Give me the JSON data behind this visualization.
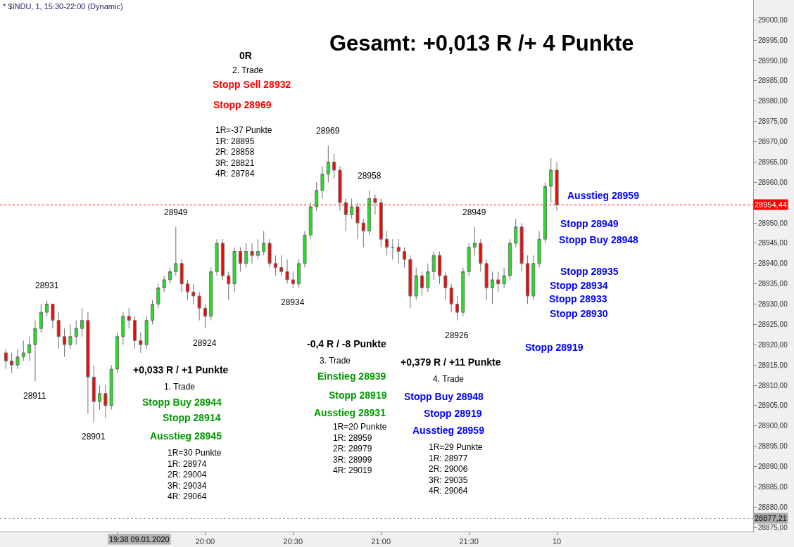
{
  "chart_data": {
    "type": "candlestick",
    "title": "Gesamt: +0,013 R /+ 4 Punkte",
    "subtitle": "* $INDU, 1, 15:30-22:00 (Dynamic)",
    "x": [
      "2020-01-09T18:52",
      "2020-01-09T18:54",
      "2020-01-09T18:56",
      "2020-01-09T18:58",
      "2020-01-09T19:00",
      "2020-01-09T19:02",
      "2020-01-09T19:04",
      "2020-01-09T19:06",
      "2020-01-09T19:08",
      "2020-01-09T19:10",
      "2020-01-09T19:12",
      "2020-01-09T19:14",
      "2020-01-09T19:16",
      "2020-01-09T19:18",
      "2020-01-09T19:20",
      "2020-01-09T19:22",
      "2020-01-09T19:24",
      "2020-01-09T19:26",
      "2020-01-09T19:28",
      "2020-01-09T19:30",
      "2020-01-09T19:32",
      "2020-01-09T19:34",
      "2020-01-09T19:36",
      "2020-01-09T19:38",
      "2020-01-09T19:40",
      "2020-01-09T19:42",
      "2020-01-09T19:44",
      "2020-01-09T19:46",
      "2020-01-09T19:48",
      "2020-01-09T19:50",
      "2020-01-09T19:52",
      "2020-01-09T19:54",
      "2020-01-09T19:56",
      "2020-01-09T19:58",
      "2020-01-09T20:00",
      "2020-01-09T20:02",
      "2020-01-09T20:04",
      "2020-01-09T20:06",
      "2020-01-09T20:08",
      "2020-01-09T20:10",
      "2020-01-09T20:12",
      "2020-01-09T20:14",
      "2020-01-09T20:16",
      "2020-01-09T20:18",
      "2020-01-09T20:20",
      "2020-01-09T20:22",
      "2020-01-09T20:24",
      "2020-01-09T20:26",
      "2020-01-09T20:28",
      "2020-01-09T20:30",
      "2020-01-09T20:32",
      "2020-01-09T20:34",
      "2020-01-09T20:36",
      "2020-01-09T20:38",
      "2020-01-09T20:40",
      "2020-01-09T20:42",
      "2020-01-09T20:44",
      "2020-01-09T20:46",
      "2020-01-09T20:48",
      "2020-01-09T20:50",
      "2020-01-09T20:52",
      "2020-01-09T20:54",
      "2020-01-09T20:56",
      "2020-01-09T20:58",
      "2020-01-09T21:00",
      "2020-01-09T21:02",
      "2020-01-09T21:04",
      "2020-01-09T21:06",
      "2020-01-09T21:08",
      "2020-01-09T21:10",
      "2020-01-09T21:12",
      "2020-01-09T21:14",
      "2020-01-09T21:16",
      "2020-01-09T21:18",
      "2020-01-09T21:20",
      "2020-01-09T21:22",
      "2020-01-09T21:24",
      "2020-01-09T21:26",
      "2020-01-09T21:28",
      "2020-01-09T21:30",
      "2020-01-09T21:32",
      "2020-01-09T21:34",
      "2020-01-09T21:36",
      "2020-01-09T21:38",
      "2020-01-09T21:40",
      "2020-01-09T21:42",
      "2020-01-09T21:44",
      "2020-01-09T21:46",
      "2020-01-09T21:48",
      "2020-01-09T21:50",
      "2020-01-09T21:52",
      "2020-01-09T21:54",
      "2020-01-09T21:56",
      "2020-01-09T21:58",
      "2020-01-09T22:00"
    ],
    "ohlc": [
      [
        28918,
        28919,
        28914,
        28916
      ],
      [
        28916,
        28918,
        28913,
        28915
      ],
      [
        28915,
        28919,
        28914,
        28917
      ],
      [
        28917,
        28921,
        28916,
        28918
      ],
      [
        28918,
        28922,
        28916,
        28920
      ],
      [
        28920,
        28926,
        28911,
        28924
      ],
      [
        28924,
        28930,
        28923,
        28928
      ],
      [
        28928,
        28931,
        28927,
        28930
      ],
      [
        28930,
        28930,
        28924,
        28926
      ],
      [
        28926,
        28928,
        28919,
        28922
      ],
      [
        28922,
        28924,
        28917,
        28920
      ],
      [
        28920,
        28925,
        28919,
        28922
      ],
      [
        28922,
        28926,
        28920,
        28924
      ],
      [
        28924,
        28929,
        28922,
        28926
      ],
      [
        28926,
        28928,
        28903,
        28912
      ],
      [
        28912,
        28915,
        28901,
        28906
      ],
      [
        28906,
        28910,
        28904,
        28908
      ],
      [
        28908,
        28910,
        28902,
        28905
      ],
      [
        28905,
        28915,
        28904,
        28914
      ],
      [
        28914,
        28923,
        28913,
        28922
      ],
      [
        28922,
        28928,
        28920,
        28927
      ],
      [
        28927,
        28929,
        28924,
        28926
      ],
      [
        28926,
        28927,
        28919,
        28921
      ],
      [
        28921,
        28923,
        28918,
        28920
      ],
      [
        28920,
        28927,
        28919,
        28926
      ],
      [
        28926,
        28931,
        28925,
        28930
      ],
      [
        28930,
        28935,
        28929,
        28934
      ],
      [
        28934,
        28937,
        28933,
        28936
      ],
      [
        28936,
        28939,
        28935,
        28938
      ],
      [
        28938,
        28949,
        28937,
        28940
      ],
      [
        28940,
        28941,
        28933,
        28935
      ],
      [
        28935,
        28936,
        28931,
        28933
      ],
      [
        28933,
        28935,
        28930,
        28932
      ],
      [
        28932,
        28933,
        28926,
        28929
      ],
      [
        28929,
        28930,
        28924,
        28927
      ],
      [
        28927,
        28939,
        28926,
        28938
      ],
      [
        28938,
        28946,
        28937,
        28945
      ],
      [
        28945,
        28946,
        28936,
        28937
      ],
      [
        28937,
        28938,
        28931,
        28935
      ],
      [
        28935,
        28944,
        28933,
        28943
      ],
      [
        28943,
        28944,
        28938,
        28940
      ],
      [
        28940,
        28945,
        28939,
        28943
      ],
      [
        28943,
        28945,
        28940,
        28942
      ],
      [
        28942,
        28946,
        28941,
        28943
      ],
      [
        28943,
        28948,
        28942,
        28945
      ],
      [
        28945,
        28946,
        28939,
        28940
      ],
      [
        28940,
        28942,
        28937,
        28939
      ],
      [
        28939,
        28942,
        28937,
        28938
      ],
      [
        28938,
        28941,
        28935,
        28936
      ],
      [
        28936,
        28938,
        28934,
        28935
      ],
      [
        28935,
        28941,
        28934,
        28940
      ],
      [
        28940,
        28948,
        28939,
        28947
      ],
      [
        28947,
        28955,
        28946,
        28954
      ],
      [
        28954,
        28960,
        28953,
        28958
      ],
      [
        28958,
        28964,
        28956,
        28962
      ],
      [
        28962,
        28969,
        28960,
        28965
      ],
      [
        28965,
        28967,
        28961,
        28963
      ],
      [
        28963,
        28964,
        28953,
        28955
      ],
      [
        28955,
        28956,
        28948,
        28952
      ],
      [
        28952,
        28956,
        28951,
        28954
      ],
      [
        28954,
        28955,
        28946,
        28950
      ],
      [
        28950,
        28951,
        28944,
        28948
      ],
      [
        28948,
        28958,
        28947,
        28956
      ],
      [
        28956,
        28957,
        28952,
        28955
      ],
      [
        28955,
        28956,
        28944,
        28946
      ],
      [
        28946,
        28948,
        28942,
        28944
      ],
      [
        28944,
        28946,
        28941,
        28944
      ],
      [
        28944,
        28946,
        28940,
        28943
      ],
      [
        28943,
        28944,
        28939,
        28941
      ],
      [
        28941,
        28942,
        28929,
        28932
      ],
      [
        28932,
        28939,
        28931,
        28937
      ],
      [
        28937,
        28938,
        28932,
        28934
      ],
      [
        28934,
        28940,
        28933,
        28938
      ],
      [
        28938,
        28943,
        28936,
        28942
      ],
      [
        28942,
        28943,
        28935,
        28937
      ],
      [
        28937,
        28938,
        28931,
        28934
      ],
      [
        28934,
        28935,
        28928,
        28930
      ],
      [
        28930,
        28932,
        28926,
        28928
      ],
      [
        28928,
        28939,
        28927,
        28938
      ],
      [
        28938,
        28945,
        28937,
        28944
      ],
      [
        28944,
        28949,
        28942,
        28945
      ],
      [
        28945,
        28946,
        28938,
        28940
      ],
      [
        28940,
        28941,
        28931,
        28934
      ],
      [
        28934,
        28938,
        28930,
        28936
      ],
      [
        28936,
        28938,
        28933,
        28935
      ],
      [
        28935,
        28939,
        28934,
        28937
      ],
      [
        28937,
        28946,
        28936,
        28945
      ],
      [
        28945,
        28951,
        28944,
        28949
      ],
      [
        28949,
        28950,
        28938,
        28940
      ],
      [
        28940,
        28942,
        28930,
        28932
      ],
      [
        28932,
        28942,
        28931,
        28940
      ],
      [
        28940,
        28948,
        28939,
        28946
      ],
      [
        28946,
        28960,
        28945,
        28959
      ],
      [
        28959,
        28966,
        28955,
        28963
      ],
      [
        28963,
        28965,
        28953,
        28954.44
      ]
    ],
    "xlim": [
      "2020-01-09T18:50",
      "2020-01-09T23:07"
    ],
    "xticks": [
      {
        "value": "2020-01-09T19:30",
        "label": null
      },
      {
        "value": "2020-01-09T20:00",
        "label": "20:00"
      },
      {
        "value": "2020-01-09T20:30",
        "label": "20:30"
      },
      {
        "value": "2020-01-09T21:00",
        "label": "21:00"
      },
      {
        "value": "2020-01-09T21:30",
        "label": "21:30"
      },
      {
        "value": "2020-01-09T22:00",
        "label": "10"
      }
    ],
    "ylim": [
      28874,
      29004.9
    ],
    "yticks": [
      {
        "value": 28875,
        "label": "28875,00"
      },
      {
        "value": 28880,
        "label": "28880,00"
      },
      {
        "value": 28885,
        "label": "28885,00"
      },
      {
        "value": 28890,
        "label": "28890,00"
      },
      {
        "value": 28895,
        "label": "28895,00"
      },
      {
        "value": 28900,
        "label": "28900,00"
      },
      {
        "value": 28905,
        "label": "28905,00"
      },
      {
        "value": 28910,
        "label": "28910,00"
      },
      {
        "value": 28915,
        "label": "28915,00"
      },
      {
        "value": 28920,
        "label": "28920,00"
      },
      {
        "value": 28925,
        "label": "28925,00"
      },
      {
        "value": 28930,
        "label": "28930,00"
      },
      {
        "value": 28935,
        "label": "28935,00"
      },
      {
        "value": 28940,
        "label": "28940,00"
      },
      {
        "value": 28945,
        "label": "28945,00"
      },
      {
        "value": 28950,
        "label": "28950,00"
      },
      {
        "value": 28960,
        "label": "28960,00"
      },
      {
        "value": 28965,
        "label": "28965,00"
      },
      {
        "value": 28970,
        "label": "28970,00"
      },
      {
        "value": 28975,
        "label": "28975,00"
      },
      {
        "value": 28980,
        "label": "28980,00"
      },
      {
        "value": 28985,
        "label": "28985,00"
      },
      {
        "value": 28990,
        "label": "28990,00"
      },
      {
        "value": 28995,
        "label": "28995,00"
      },
      {
        "value": 29000,
        "label": "29000,00"
      }
    ],
    "ref_lines": [
      {
        "axis": "y",
        "value": 28954.44,
        "label": "28954,44",
        "color": "#ff0000"
      },
      {
        "axis": "y",
        "value": 28877.21,
        "label": "28877,21",
        "color": "#a9a9a9"
      }
    ],
    "annotations": [
      {
        "text": "28931",
        "x": "2020-01-09T19:06",
        "y": 28931
      },
      {
        "text": "28911",
        "x": "2020-01-09T19:02",
        "y": 28911
      },
      {
        "text": "28901",
        "x": "2020-01-09T19:22",
        "y": 28901
      },
      {
        "text": "28949",
        "x": "2020-01-09T19:50",
        "y": 28949
      },
      {
        "text": "28924",
        "x": "2020-01-09T20:00",
        "y": 28924
      },
      {
        "text": "28934",
        "x": "2020-01-09T20:30",
        "y": 28934
      },
      {
        "text": "28969",
        "x": "2020-01-09T20:42",
        "y": 28969
      },
      {
        "text": "28958",
        "x": "2020-01-09T20:56",
        "y": 28958
      },
      {
        "text": "28949",
        "x": "2020-01-09T21:32",
        "y": 28949
      },
      {
        "text": "28926",
        "x": "2020-01-09T21:26",
        "y": 28926
      },
      "19:38 09.01.2020",
      "0R",
      "2. Trade",
      "Stopp Sell 28932",
      "Stopp 28969",
      "1R=-37 Punkte\n1R: 28895\n2R: 28858\n3R: 28821\n4R: 28784",
      "+0,033 R / +1 Punkte",
      "1. Trade",
      "Stopp Buy 28944",
      "Stopp 28914",
      "Ausstieg 28945",
      "1R=30 Punkte\n1R: 28974\n2R: 29004\n3R: 29034\n4R: 29064",
      "-0,4 R / -8 Punkte",
      "3. Trade",
      "Einstieg 28939",
      "Stopp 28919",
      "Ausstieg 28931",
      "1R=20 Punkte\n1R: 28959\n2R: 28979\n3R: 28999\n4R: 29019",
      "+0,379 R / +11 Punkte",
      "4. Trade",
      "Stopp Buy 28948",
      "Stopp 28919",
      "Ausstieg 28959",
      "1R=29 Punkte\n1R: 28977\n2R: 29006\n3R: 29035\n4R: 29064",
      "Ausstieg 28959",
      "Stopp 28949",
      "Stopp Buy 28948",
      "Stopp 28935",
      "Stopp 28934",
      "Stopp 28933",
      "Stopp 28930",
      "Stopp 28919"
    ]
  }
}
